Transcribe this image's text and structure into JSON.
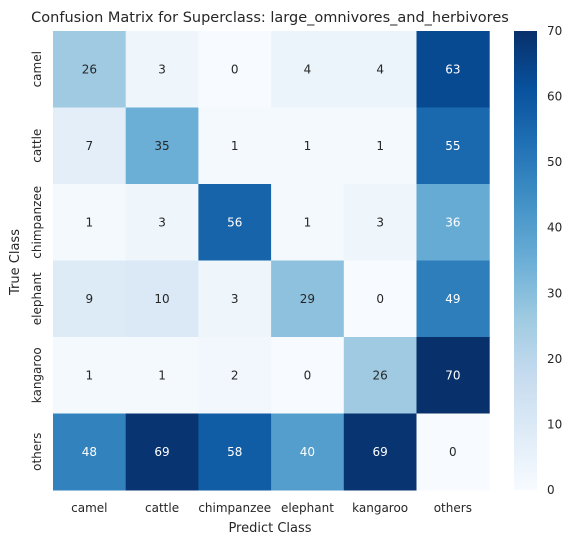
{
  "chart_data": {
    "type": "heatmap",
    "title": "Confusion Matrix for Superclass: large_omnivores_and_herbivores",
    "xlabel": "Predict Class",
    "ylabel": "True Class",
    "x_categories": [
      "camel",
      "cattle",
      "chimpanzee",
      "elephant",
      "kangaroo",
      "others"
    ],
    "y_categories": [
      "camel",
      "cattle",
      "chimpanzee",
      "elephant",
      "kangaroo",
      "others"
    ],
    "values": [
      [
        26,
        3,
        0,
        4,
        4,
        63
      ],
      [
        7,
        35,
        1,
        1,
        1,
        55
      ],
      [
        1,
        3,
        56,
        1,
        3,
        36
      ],
      [
        9,
        10,
        3,
        29,
        0,
        49
      ],
      [
        1,
        1,
        2,
        0,
        26,
        70
      ],
      [
        48,
        69,
        58,
        40,
        69,
        0
      ]
    ],
    "colorbar": {
      "min": 0,
      "max": 70,
      "ticks": [
        0,
        10,
        20,
        30,
        40,
        50,
        60,
        70
      ]
    },
    "colormap": "Blues",
    "grid": false
  }
}
